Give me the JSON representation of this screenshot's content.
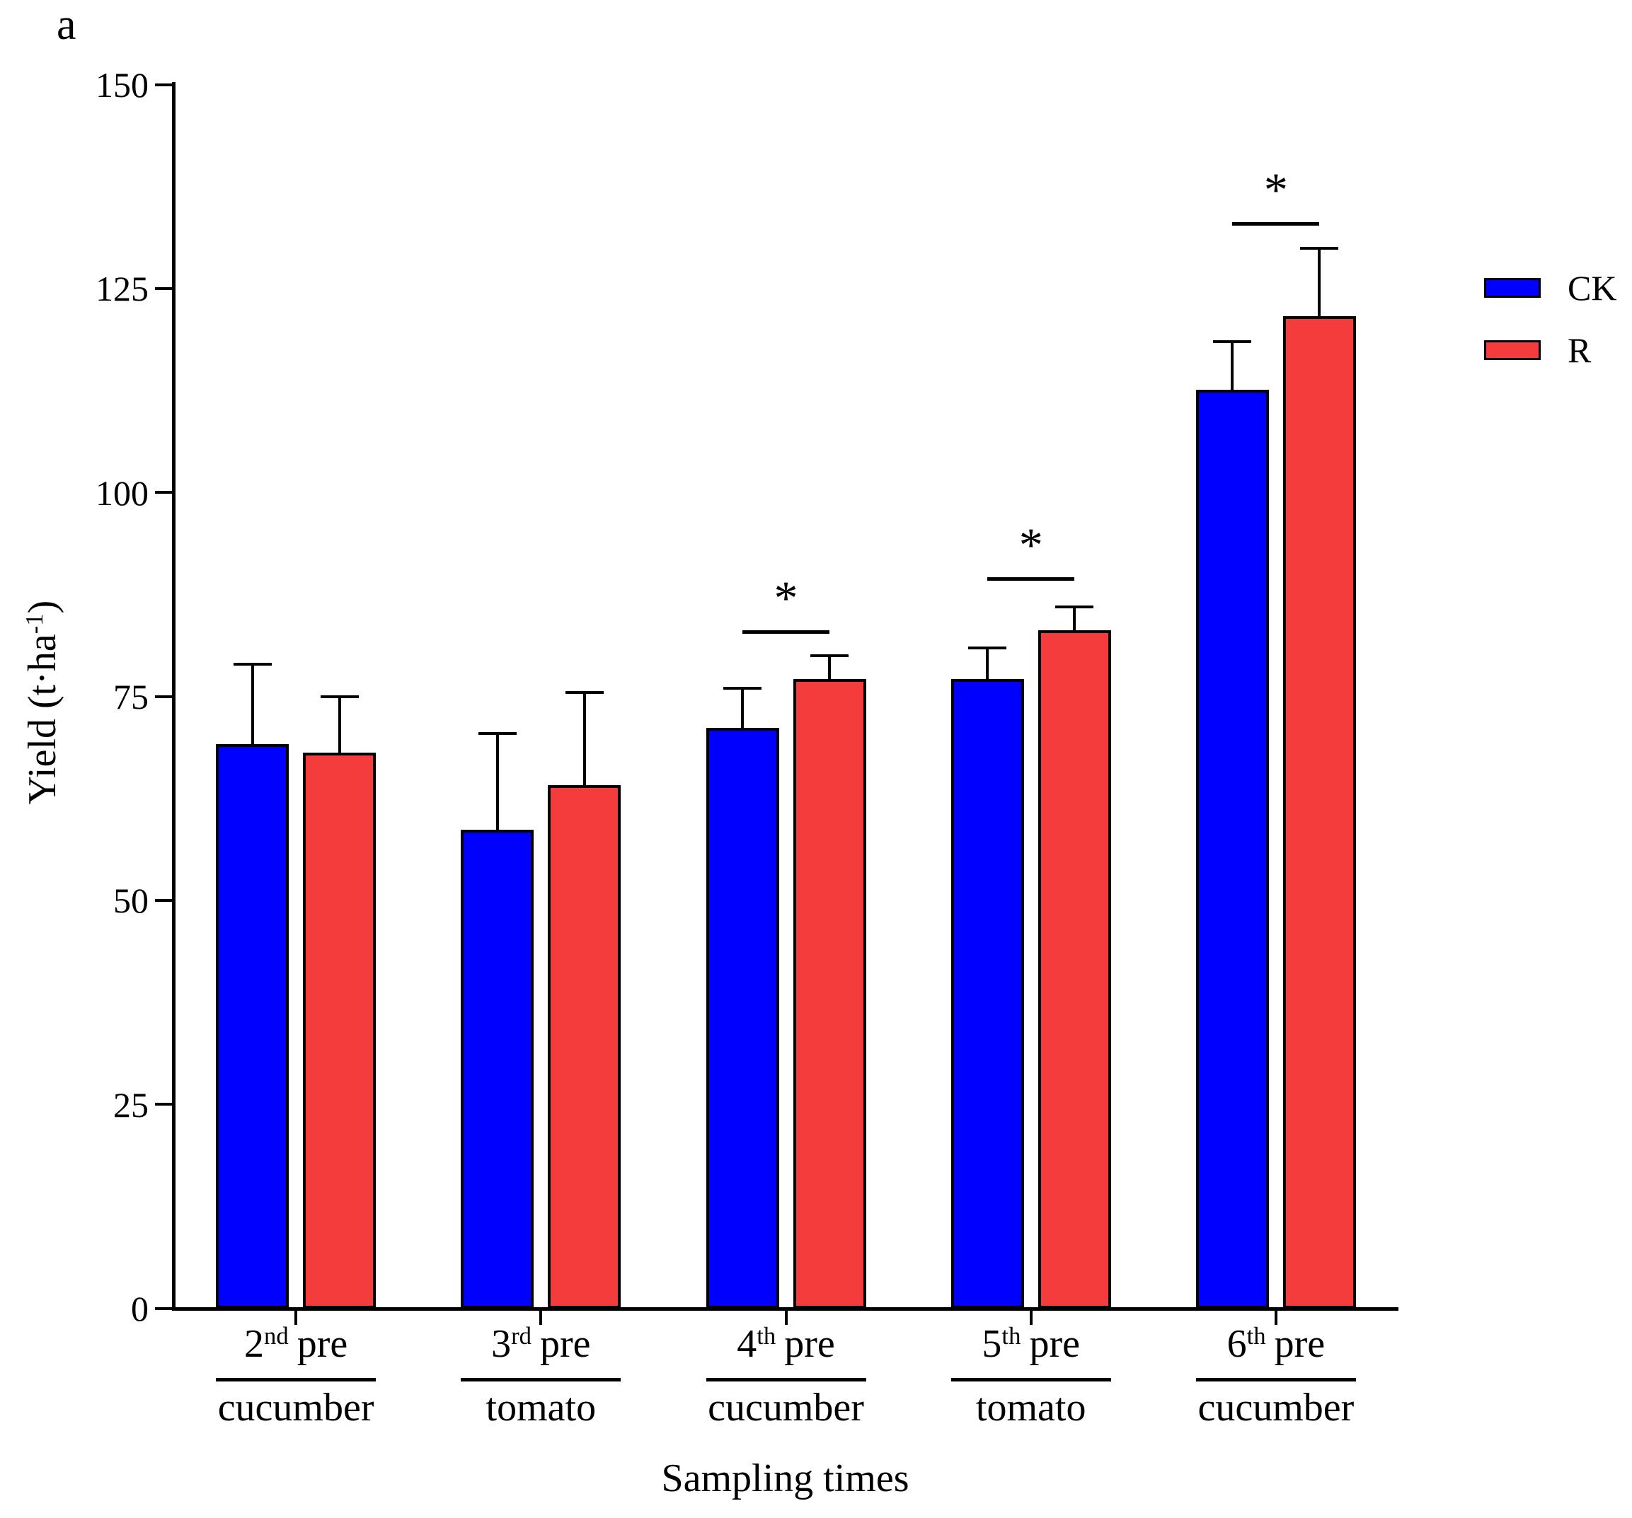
{
  "chart_data": {
    "type": "bar",
    "panel_label": "a",
    "title": "",
    "xlabel": "Sampling times",
    "ylabel_parts": {
      "pre": "Yield (t·ha",
      "sup": "-1",
      "post": ")"
    },
    "ylim": [
      0,
      150
    ],
    "yticks": [
      0,
      25,
      50,
      75,
      100,
      125,
      150
    ],
    "grid": false,
    "legend_position": "right",
    "categories": [
      {
        "time_num": "2",
        "time_sup": "nd",
        "time_rest": "pre",
        "crop": "cucumber"
      },
      {
        "time_num": "3",
        "time_sup": "rd",
        "time_rest": "pre",
        "crop": "tomato"
      },
      {
        "time_num": "4",
        "time_sup": "th",
        "time_rest": "pre",
        "crop": "cucumber"
      },
      {
        "time_num": "5",
        "time_sup": "th",
        "time_rest": "pre",
        "crop": "tomato"
      },
      {
        "time_num": "6",
        "time_sup": "th",
        "time_rest": "pre",
        "crop": "cucumber"
      }
    ],
    "series": [
      {
        "name": "CK",
        "color": "#0000FE",
        "values": [
          69,
          58.5,
          71,
          77,
          112.5
        ],
        "errors_plus": [
          10,
          12,
          5,
          4,
          6
        ]
      },
      {
        "name": "R",
        "color": "#F43C3C",
        "values": [
          68,
          64,
          77,
          83,
          121.5
        ],
        "errors_plus": [
          7,
          11.5,
          3,
          3,
          8.5
        ]
      }
    ],
    "significance": [
      {
        "group": 3,
        "label": "*",
        "bracket_y": 83
      },
      {
        "group": 4,
        "label": "*",
        "bracket_y": 89.5
      },
      {
        "group": 5,
        "label": "*",
        "bracket_y": 133
      }
    ]
  }
}
